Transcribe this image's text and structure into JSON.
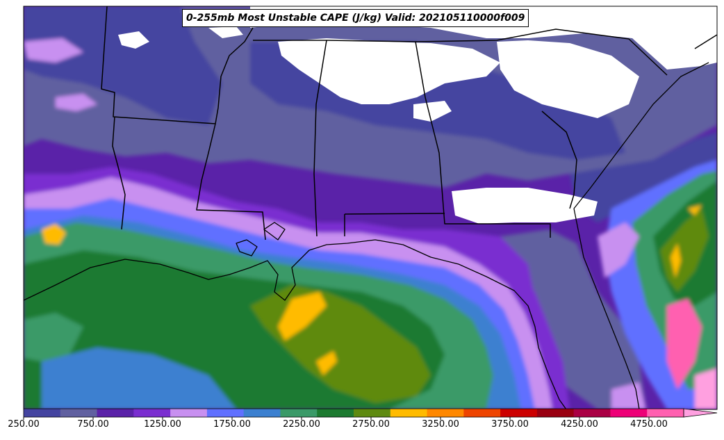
{
  "title": "0-255mb Most Unstable CAPE (J/kg) Valid: 202105110000f009",
  "colorbar": {
    "min": 250,
    "max": 5000,
    "step": 250,
    "extend": "max",
    "colors": [
      "#4444a0",
      "#6060a0",
      "#5a22a8",
      "#7a2ed0",
      "#c890f0",
      "#6070ff",
      "#3c80d0",
      "#3a9a68",
      "#1c7a30",
      "#5e8a10",
      "#ffbb00",
      "#ff8800",
      "#ee4400",
      "#cc0000",
      "#990011",
      "#aa0044",
      "#ee0077",
      "#ff60b0",
      "#ffa0e0"
    ],
    "tick_labels": [
      "250.00",
      "750.00",
      "1250.00",
      "1750.00",
      "2250.00",
      "2750.00",
      "3250.00",
      "3750.00",
      "4250.00",
      "4750.00"
    ],
    "tick_values": [
      250,
      750,
      1250,
      1750,
      2250,
      2750,
      3250,
      3750,
      4250,
      4750
    ]
  }
}
